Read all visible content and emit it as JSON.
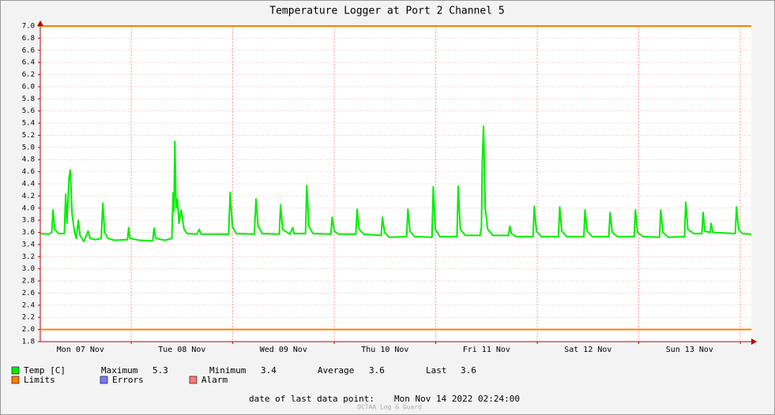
{
  "chart_data": {
    "type": "line",
    "title": "Temperature Logger at Port 2 Channel 5",
    "xlim": [
      2.5,
      170.6
    ],
    "xticks": [
      {
        "value": 12,
        "label": "Mon 07 Nov"
      },
      {
        "value": 36,
        "label": "Tue 08 Nov"
      },
      {
        "value": 60,
        "label": "Wed 09 Nov"
      },
      {
        "value": 84,
        "label": "Thu 10 Nov"
      },
      {
        "value": 108,
        "label": "Fri 11 Nov"
      },
      {
        "value": 132,
        "label": "Sat 12 Nov"
      },
      {
        "value": 156,
        "label": "Sun 13 Nov"
      }
    ],
    "xgrid": [
      24,
      48,
      72,
      96,
      120,
      144,
      168
    ],
    "ylim": [
      1.8,
      7
    ],
    "yticks": [
      1.8,
      {
        "value": 2,
        "label": "2.0"
      },
      2.2,
      2.4,
      2.6,
      2.8,
      {
        "value": 3,
        "label": "3.0"
      },
      3.2,
      3.4,
      3.6,
      3.8,
      {
        "value": 4,
        "label": "4.0"
      },
      4.2,
      4.4,
      4.6,
      4.8,
      {
        "value": 5,
        "label": "5.0"
      },
      5.2,
      5.4,
      5.6,
      5.8,
      {
        "value": 6,
        "label": "6.0"
      },
      6.2,
      6.4,
      6.6,
      6.8,
      {
        "value": 7,
        "label": "7.0"
      }
    ],
    "grid": true,
    "x": [
      2.5,
      4.5,
      5.2,
      5.5,
      5.9,
      6.8,
      8.2,
      8.5,
      8.8,
      9.3,
      9.6,
      10.0,
      10.6,
      11.0,
      11.5,
      11.9,
      12.8,
      13.8,
      14.3,
      15.5,
      16.9,
      17.3,
      17.7,
      18.5,
      20,
      23.1,
      23.4,
      23.7,
      26,
      29.1,
      29.4,
      29.8,
      32,
      33.6,
      33.9,
      34.1,
      34.3,
      34.6,
      34.9,
      35.3,
      35.8,
      36.5,
      37.2,
      39.5,
      40.1,
      40.5,
      47.0,
      47.4,
      47.9,
      48.8,
      53.1,
      53.5,
      54,
      55,
      59.0,
      59.3,
      59.8,
      61.5,
      62.2,
      62.5,
      65.2,
      65.5,
      66.0,
      67.0,
      71.2,
      71.5,
      72,
      73,
      77.1,
      77.4,
      77.9,
      79,
      83.1,
      83.4,
      83.9,
      85,
      89.1,
      89.4,
      89.9,
      91,
      95.1,
      95.4,
      95.9,
      97,
      101,
      101.3,
      101.8,
      103,
      106.5,
      106.8,
      107.0,
      107.3,
      107.7,
      108.3,
      109.5,
      113.2,
      113.5,
      113.9,
      115,
      119,
      119.3,
      119.8,
      121,
      125,
      125.3,
      125.8,
      127,
      131,
      131.3,
      131.8,
      133,
      136.9,
      137.2,
      137.7,
      139,
      142.9,
      143.2,
      143.7,
      145,
      148.9,
      149.2,
      149.7,
      151,
      154.8,
      155.1,
      155.6,
      157,
      158.9,
      159.2,
      159.6,
      160.9,
      161.1,
      161.5,
      166.8,
      167.1,
      167.6,
      168.5,
      170.6
    ],
    "series": [
      {
        "name": "Temp [C]",
        "color": "#00ee00",
        "values": [
          3.58,
          3.57,
          3.6,
          3.97,
          3.65,
          3.58,
          3.58,
          4.23,
          3.75,
          4.5,
          4.63,
          3.9,
          3.6,
          3.5,
          3.8,
          3.55,
          3.45,
          3.62,
          3.5,
          3.48,
          3.5,
          4.08,
          3.6,
          3.5,
          3.47,
          3.48,
          3.68,
          3.5,
          3.47,
          3.46,
          3.67,
          3.5,
          3.47,
          3.5,
          4.25,
          3.95,
          5.1,
          4.0,
          4.15,
          3.75,
          3.97,
          3.65,
          3.58,
          3.57,
          3.65,
          3.57,
          3.57,
          4.26,
          3.7,
          3.58,
          3.57,
          4.15,
          3.7,
          3.58,
          3.57,
          4.05,
          3.65,
          3.57,
          3.68,
          3.58,
          3.58,
          4.37,
          3.7,
          3.58,
          3.57,
          3.85,
          3.62,
          3.57,
          3.57,
          3.98,
          3.65,
          3.57,
          3.55,
          3.85,
          3.6,
          3.52,
          3.53,
          3.98,
          3.62,
          3.53,
          3.52,
          4.35,
          3.65,
          3.53,
          3.53,
          4.36,
          3.65,
          3.55,
          3.55,
          3.68,
          4.78,
          5.35,
          4.0,
          3.65,
          3.55,
          3.55,
          3.7,
          3.58,
          3.53,
          3.53,
          4.03,
          3.62,
          3.53,
          3.53,
          4.02,
          3.62,
          3.53,
          3.53,
          3.97,
          3.62,
          3.53,
          3.53,
          3.93,
          3.6,
          3.53,
          3.53,
          3.97,
          3.6,
          3.53,
          3.52,
          3.97,
          3.6,
          3.52,
          3.53,
          4.1,
          3.65,
          3.58,
          3.58,
          3.93,
          3.62,
          3.6,
          3.75,
          3.6,
          3.58,
          4.02,
          3.65,
          3.58,
          3.57
        ]
      }
    ],
    "limits": {
      "name": "Limits",
      "color": "#ff7f00",
      "values": [
        7,
        2
      ]
    },
    "legend_extra": [
      {
        "name": "Errors",
        "color": "#7777ff"
      },
      {
        "name": "Alarm",
        "color": "#ff7777"
      }
    ],
    "stats": [
      {
        "label": "Maximum",
        "value": 5.3
      },
      {
        "label": "Minimum",
        "value": 3.4
      },
      {
        "label": "Average",
        "value": 3.6
      },
      {
        "label": "Last",
        "value": 3.6
      }
    ],
    "last_data_label": "date of last data point:",
    "last_data": "Mon Nov 14 2022 02:24:00",
    "watermark": "OCTAA Log & Guard"
  }
}
